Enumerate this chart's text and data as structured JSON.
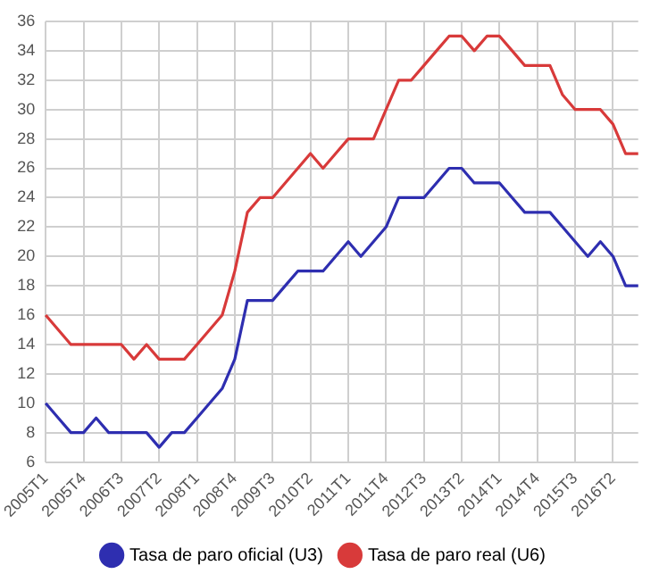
{
  "chart_data": {
    "type": "line",
    "categories": [
      "2005T1",
      null,
      null,
      "2005T4",
      null,
      null,
      "2006T3",
      null,
      null,
      "2007T2",
      null,
      null,
      "2008T1",
      null,
      null,
      "2008T4",
      null,
      null,
      "2009T3",
      null,
      null,
      "2010T2",
      null,
      null,
      "2011T1",
      null,
      null,
      "2011T4",
      null,
      null,
      "2012T3",
      null,
      null,
      "2013T2",
      null,
      null,
      "2014T1",
      null,
      null,
      "2014T4",
      null,
      null,
      "2015T3",
      null,
      null,
      "2016T2",
      null,
      null
    ],
    "series": [
      {
        "name": "Tasa de paro oficial (U3)",
        "color": "#2e2eb0",
        "values": [
          10,
          9,
          8,
          8,
          9,
          8,
          8,
          8,
          8,
          7,
          8,
          8,
          9,
          10,
          11,
          13,
          17,
          17,
          17,
          18,
          19,
          19,
          19,
          20,
          21,
          20,
          21,
          22,
          24,
          24,
          24,
          25,
          26,
          26,
          25,
          25,
          25,
          24,
          23,
          23,
          23,
          22,
          21,
          20,
          21,
          20,
          18,
          18
        ]
      },
      {
        "name": "Tasa de paro real (U6)",
        "color": "#d83a3a",
        "values": [
          16,
          15,
          14,
          14,
          14,
          14,
          14,
          13,
          14,
          13,
          13,
          13,
          14,
          15,
          16,
          19,
          23,
          24,
          24,
          25,
          26,
          27,
          26,
          27,
          28,
          28,
          28,
          30,
          32,
          32,
          33,
          34,
          35,
          35,
          34,
          35,
          35,
          34,
          33,
          33,
          33,
          31,
          30,
          30,
          30,
          29,
          27,
          27
        ]
      }
    ],
    "ylim": [
      6,
      36
    ],
    "yticks": [
      6,
      8,
      10,
      12,
      14,
      16,
      18,
      20,
      22,
      24,
      26,
      28,
      30,
      32,
      34,
      36
    ],
    "grid": true,
    "legend": "bottom",
    "marker": "none",
    "line_style": "solid"
  }
}
